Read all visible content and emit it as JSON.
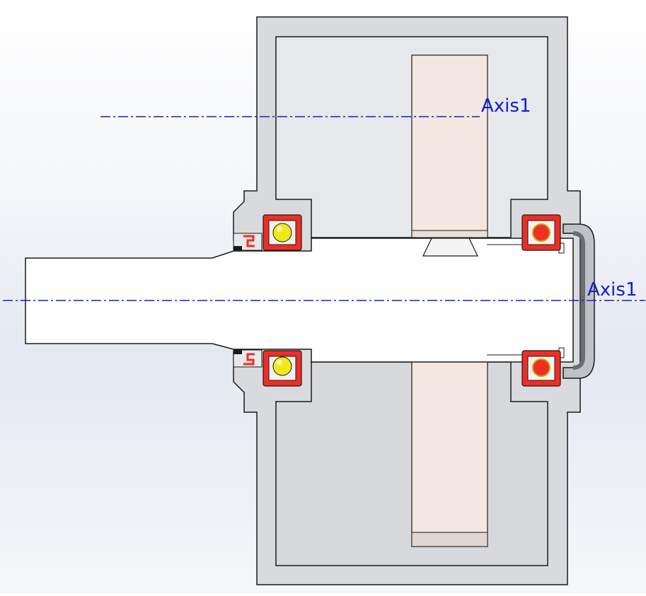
{
  "viewport": {
    "name": "section-view",
    "background_top": "#ffffff",
    "background_bottom": "#e4e8f0"
  },
  "colors": {
    "housing_fill": "#d9dadd",
    "housing_inner_fill": "#e6e8ec",
    "outline": "#1a1a1a",
    "gear_fill": "#f4e7e0",
    "shaft_fill": "#ffffff",
    "bearing_red": "#ee2e24",
    "ball_yellow": "#f0e81a",
    "axis_blue": "#1020c8"
  },
  "annotations": {
    "axis_upper_label": "Axis1",
    "axis_center_label": "Axis1"
  }
}
